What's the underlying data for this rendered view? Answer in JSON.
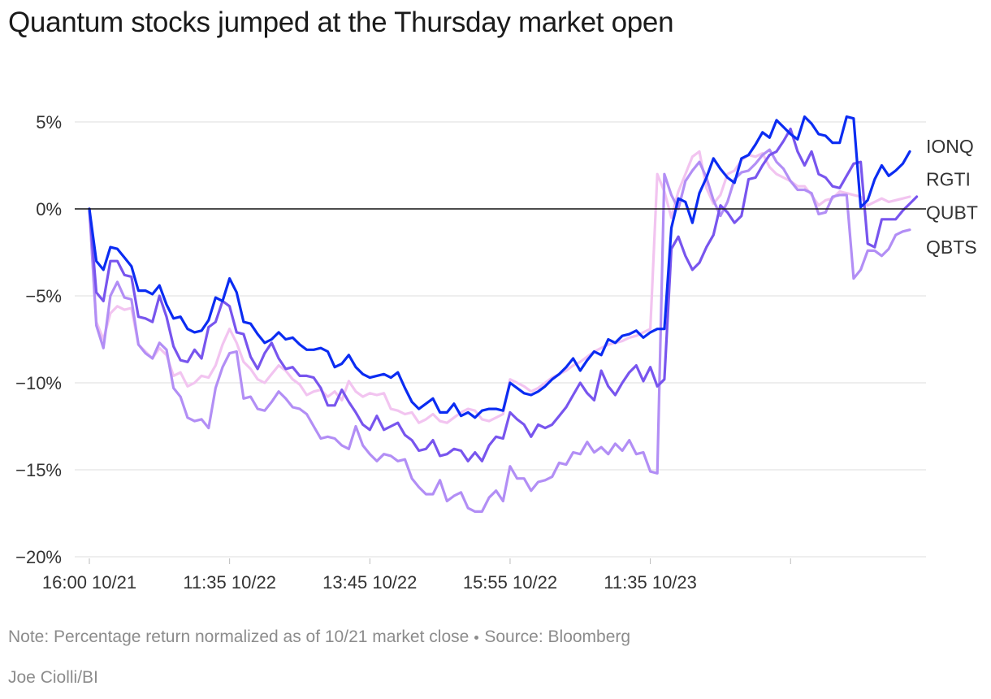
{
  "chart_data": {
    "type": "line",
    "title": "Quantum stocks jumped at the Thursday market open",
    "ylim": [
      -20,
      6
    ],
    "yticks": [
      5,
      0,
      -5,
      -10,
      -15,
      -20
    ],
    "ytick_labels": [
      "5%",
      "0%",
      "−5%",
      "−10%",
      "−15%",
      "−20%"
    ],
    "x_count": 118,
    "xtick_index": [
      0,
      20,
      40,
      60,
      80,
      100
    ],
    "xtick_labels": [
      "16:00 10/21",
      "11:35 10/22",
      "13:45 10/22",
      "15:55 10/22",
      "11:35 10/23"
    ],
    "xtick_label_index": [
      0,
      20,
      40,
      60,
      80
    ],
    "baseline": 0,
    "series": [
      {
        "name": "QBTS",
        "color": "#f2c4f0",
        "values": [
          0,
          -6.5,
          -7.5,
          -6,
          -5.6,
          -5.8,
          -5.7,
          -7.8,
          -8.2,
          -8.6,
          -8,
          -8.4,
          -9.6,
          -9.4,
          -10.2,
          -10,
          -9.6,
          -9.7,
          -9,
          -7.8,
          -6.9,
          -7.7,
          -8.8,
          -9.2,
          -9.8,
          -10,
          -9.5,
          -9,
          -9.3,
          -9.8,
          -10.1,
          -10.7,
          -10.5,
          -10.4,
          -10.8,
          -10.5,
          -11,
          -9.9,
          -10.5,
          -10.8,
          -10.6,
          -10.7,
          -10.6,
          -11.5,
          -11.6,
          -11.8,
          -11.7,
          -12.3,
          -12.1,
          -11.8,
          -12.2,
          -12.3,
          -12,
          -11.7,
          -11.5,
          -11.6,
          -12.1,
          -12.2,
          -12,
          -11.8,
          -9.8,
          -10,
          -10.2,
          -10.5,
          -10.3,
          -10,
          -9.7,
          -9.5,
          -9.3,
          -9,
          -8.8,
          -8.5,
          -8.2,
          -8,
          -7.8,
          -7.7,
          -7.6,
          -7.4,
          -7.3,
          -7.1,
          -6.9,
          2,
          1,
          -0.5,
          1,
          2,
          3,
          3.3,
          1.2,
          0.3,
          0.8,
          2,
          2.2,
          2.8,
          3.1,
          3,
          3.2,
          2.4,
          2,
          1.8,
          1.6,
          1.3,
          1.3,
          0.8,
          0.2,
          0.5,
          0.6,
          1,
          0.9,
          0.8,
          0.7,
          0.2,
          0.4,
          0.6,
          0.4,
          0.5,
          0.6,
          0.7
        ]
      },
      {
        "name": "QUBT",
        "color": "#b28ef5",
        "values": [
          0,
          -6.7,
          -8,
          -5,
          -4.2,
          -5.1,
          -5.2,
          -7.8,
          -8.3,
          -8.6,
          -7.7,
          -8.1,
          -10.3,
          -10.8,
          -12,
          -12.2,
          -12.1,
          -12.6,
          -10.3,
          -9.1,
          -8.3,
          -8.2,
          -10.9,
          -10.8,
          -11.5,
          -11.6,
          -11.1,
          -10.5,
          -10.9,
          -11.4,
          -11.5,
          -11.8,
          -12.5,
          -13.2,
          -13.1,
          -13.2,
          -13.6,
          -13.8,
          -12.5,
          -13.6,
          -14.1,
          -14.5,
          -14.1,
          -14.2,
          -14.5,
          -14.4,
          -15.5,
          -16,
          -16.4,
          -16.4,
          -15.6,
          -16.8,
          -16.5,
          -16.3,
          -17.2,
          -17.4,
          -17.4,
          -16.6,
          -16.2,
          -16.8,
          -14.8,
          -15.5,
          -15.5,
          -16.2,
          -15.7,
          -15.6,
          -15.4,
          -14.6,
          -14.7,
          -14,
          -14.1,
          -13.4,
          -14,
          -13.7,
          -14.1,
          -13.5,
          -13.9,
          -13.3,
          -14.1,
          -14,
          -15.1,
          -15.2,
          2,
          0.8,
          0,
          1.6,
          2.2,
          2.7,
          1.8,
          0.5,
          -0.4,
          0.4,
          1.7,
          2.1,
          2.2,
          2.6,
          3.1,
          3.4,
          2.7,
          2.3,
          1.6,
          1.1,
          1.1,
          0.9,
          -0.3,
          -0.2,
          0.7,
          0.8,
          0.8,
          -4,
          -3.5,
          -2.4,
          -2.4,
          -2.7,
          -2.3,
          -1.5,
          -1.3,
          -1.2
        ]
      },
      {
        "name": "RGTI",
        "color": "#7855ee",
        "values": [
          0,
          -4.8,
          -5.3,
          -3,
          -3,
          -3.8,
          -3.9,
          -6.2,
          -6.3,
          -6.5,
          -5,
          -6.2,
          -7.9,
          -8.7,
          -8.8,
          -8.1,
          -8.6,
          -6.8,
          -6.5,
          -5.3,
          -5.6,
          -7.1,
          -7.2,
          -8.5,
          -9.2,
          -8.3,
          -7.7,
          -8.6,
          -9.2,
          -9.1,
          -9.6,
          -9.6,
          -9.7,
          -10.3,
          -11.3,
          -11.3,
          -10.4,
          -11.1,
          -11.7,
          -12.4,
          -12.7,
          -11.9,
          -12.7,
          -12.5,
          -12.3,
          -13,
          -13.3,
          -13.9,
          -13.8,
          -13.3,
          -14.2,
          -14.1,
          -13.8,
          -13.9,
          -14.5,
          -14,
          -14.5,
          -13.6,
          -13.1,
          -13.2,
          -11.7,
          -12.1,
          -12.4,
          -13.1,
          -12.4,
          -12.6,
          -12.4,
          -11.9,
          -11.4,
          -10.7,
          -10,
          -10.6,
          -11,
          -9.3,
          -10.2,
          -10.7,
          -10,
          -9.4,
          -9,
          -9.9,
          -9.1,
          -10.2,
          -9.8,
          -2.3,
          -1.6,
          -2.7,
          -3.5,
          -3.1,
          -2.2,
          -1.5,
          0.2,
          -0.2,
          -0.8,
          -0.4,
          1.7,
          1.8,
          2.5,
          3.1,
          3.3,
          3.9,
          4.6,
          3.3,
          2.5,
          3.3,
          2,
          1.8,
          1.3,
          1.2,
          1.9,
          2.6,
          2.7,
          -2,
          -2.2,
          -0.6,
          -0.6,
          -0.6,
          -0.1,
          0.3,
          0.7
        ]
      },
      {
        "name": "IONQ",
        "color": "#0b2cf2",
        "values": [
          0,
          -3,
          -3.5,
          -2.2,
          -2.3,
          -2.8,
          -3.3,
          -4.7,
          -4.7,
          -4.9,
          -4.4,
          -5.5,
          -6.3,
          -6.2,
          -6.9,
          -7.1,
          -7,
          -6.4,
          -5.1,
          -5.3,
          -4,
          -4.8,
          -6.5,
          -6.6,
          -7.2,
          -7.7,
          -7.5,
          -7.1,
          -7.5,
          -7.4,
          -7.8,
          -8.1,
          -8.1,
          -8,
          -8.2,
          -9.1,
          -8.9,
          -8.4,
          -9.1,
          -9.5,
          -9.7,
          -9.6,
          -9.5,
          -9.7,
          -9.4,
          -10.3,
          -11.1,
          -11.5,
          -11.2,
          -10.9,
          -11.7,
          -11.7,
          -11.2,
          -11.9,
          -11.7,
          -12,
          -11.6,
          -11.5,
          -11.5,
          -11.6,
          -10,
          -10.3,
          -10.6,
          -10.7,
          -10.5,
          -10.2,
          -9.8,
          -9.5,
          -9.1,
          -8.6,
          -9.3,
          -8.7,
          -8.2,
          -8.4,
          -7.5,
          -7.7,
          -7.3,
          -7.2,
          -7,
          -7.4,
          -7.1,
          -6.9,
          -6.9,
          -1.1,
          0.6,
          0.4,
          -0.8,
          0.9,
          1.8,
          2.9,
          2.3,
          1.8,
          1.5,
          2.9,
          3.1,
          3.7,
          4.4,
          4.1,
          5.1,
          4.7,
          4.3,
          4,
          5.3,
          4.9,
          4.3,
          4.2,
          3.8,
          3.8,
          5.3,
          5.2,
          0.1,
          0.5,
          1.7,
          2.5,
          1.9,
          2.2,
          2.6,
          3.3
        ]
      }
    ],
    "legend": [
      {
        "label": "IONQ",
        "value": 3.6
      },
      {
        "label": "RGTI",
        "value": 1.7
      },
      {
        "label": "QUBT",
        "value": -0.2
      },
      {
        "label": "QBTS",
        "value": -2.2
      }
    ]
  },
  "note": {
    "text": "Note: Percentage return normalized as of 10/21 market close",
    "source": "Source: Bloomberg"
  },
  "credit": "Joe Ciolli/BI"
}
